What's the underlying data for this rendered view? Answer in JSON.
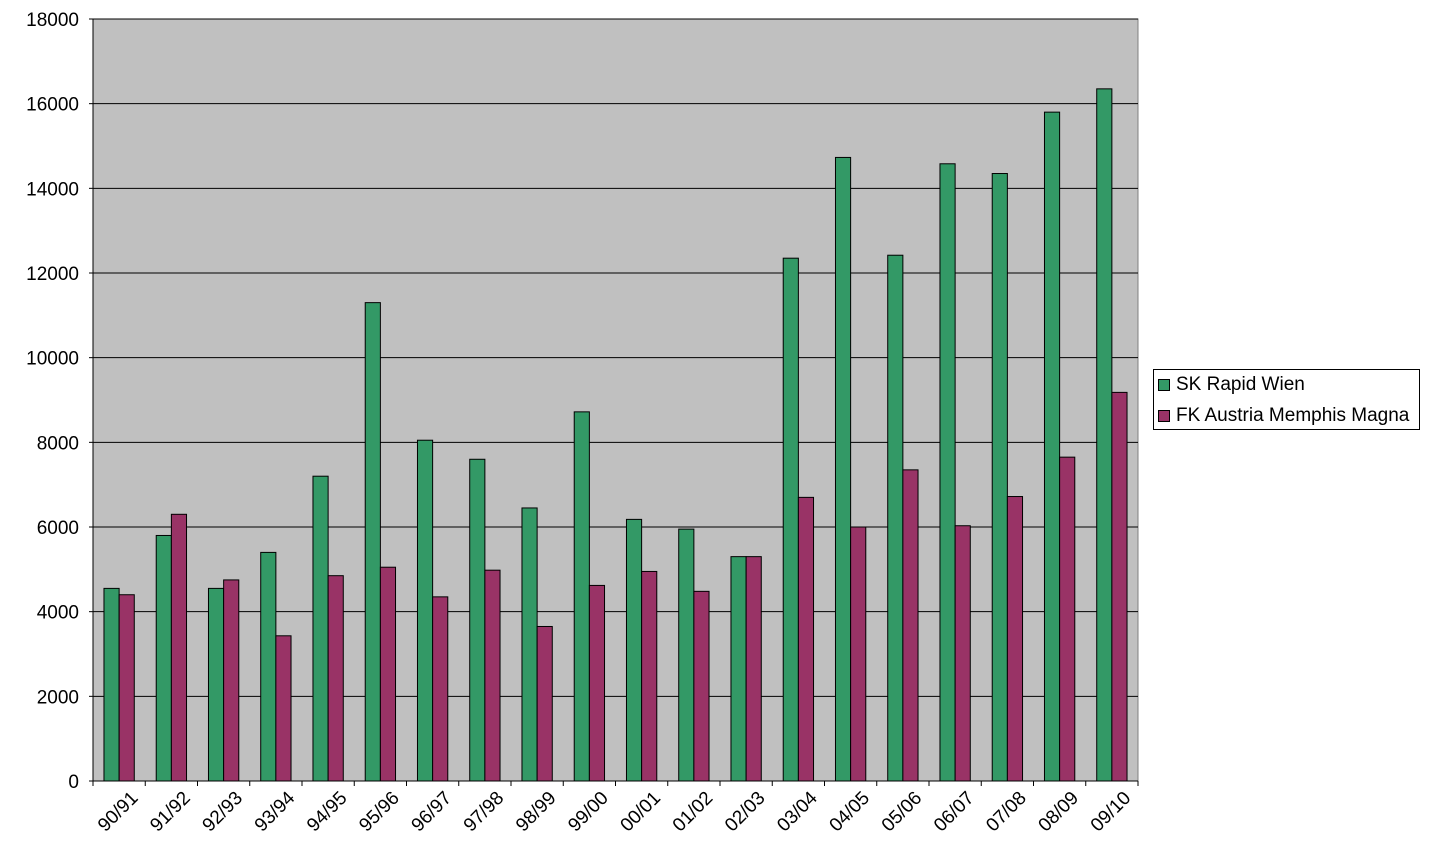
{
  "chart_data": {
    "type": "bar",
    "categories": [
      "90/91",
      "91/92",
      "92/93",
      "93/94",
      "94/95",
      "95/96",
      "96/97",
      "97/98",
      "98/99",
      "99/00",
      "00/01",
      "01/02",
      "02/03",
      "03/04",
      "04/05",
      "05/06",
      "06/07",
      "07/08",
      "08/09",
      "09/10"
    ],
    "series": [
      {
        "name": "SK Rapid Wien",
        "color": "#339966",
        "values": [
          4550,
          5800,
          4550,
          5400,
          7200,
          11300,
          8050,
          7600,
          6450,
          8720,
          6180,
          5950,
          5300,
          12350,
          14730,
          12420,
          14580,
          14350,
          15800,
          16350
        ]
      },
      {
        "name": "FK Austria Memphis Magna",
        "color": "#993366",
        "values": [
          4400,
          6300,
          4750,
          3430,
          4850,
          5050,
          4350,
          4980,
          3650,
          4620,
          4950,
          4480,
          5300,
          6700,
          6000,
          7350,
          6030,
          6720,
          7650,
          9180
        ]
      }
    ],
    "yticks": [
      0,
      2000,
      4000,
      6000,
      8000,
      10000,
      12000,
      14000,
      16000,
      18000
    ],
    "ylim": [
      0,
      18000
    ],
    "grid": true,
    "plot_background": "#c0c0c0",
    "legend_position": "right"
  }
}
